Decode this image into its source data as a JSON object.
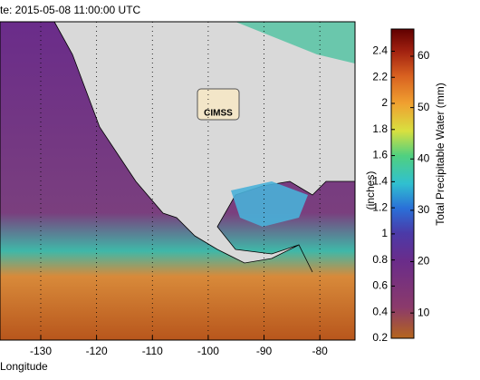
{
  "header": {
    "title": "te: 2015-05-08 11:00:00 UTC"
  },
  "map": {
    "xlabel": "Longitude",
    "xlim": [
      -137.3,
      -73.7
    ],
    "xticks": [
      -130,
      -120,
      -110,
      -100,
      -90,
      -80
    ],
    "logo": "CIMSS"
  },
  "colorbar": {
    "left_label": "(inches)",
    "right_label": "Total Precipitable Water (mm)",
    "ylim": [
      0.2,
      2.57
    ],
    "yticks": [
      0.2,
      0.4,
      0.6,
      0.8,
      1,
      1.2,
      1.4,
      1.6,
      1.8,
      2,
      2.2,
      2.4
    ],
    "y2lim": [
      5.08,
      65.3
    ],
    "y2ticks": [
      10,
      20,
      30,
      40,
      50,
      60
    ]
  }
}
